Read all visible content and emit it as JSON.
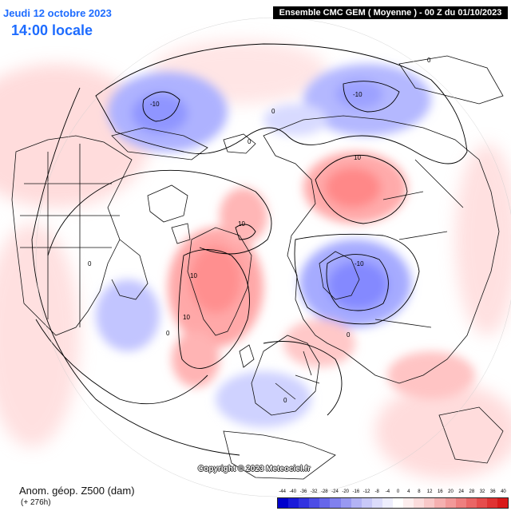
{
  "header": {
    "date": "Jeudi 12 octobre 2023",
    "local_time": "14:00 locale",
    "run_info": "Ensemble CMC GEM  ( Moyenne )  -  00 Z du 01/10/2023"
  },
  "footer": {
    "field_name": "Anom. géop. Z500 (dam)",
    "lead_time": "(+ 276h)",
    "copyright": "Copyright © 2023 Meteociel.fr"
  },
  "contour_labels": [
    "-10",
    "-10",
    "-10",
    "10",
    "10",
    "10",
    "10",
    "0",
    "0",
    "0",
    "0",
    "0",
    "0",
    "0"
  ],
  "legend": {
    "values": [
      "-44",
      "-40",
      "-36",
      "-32",
      "-28",
      "-24",
      "-20",
      "-16",
      "-12",
      "-8",
      "-4",
      "0",
      "4",
      "8",
      "12",
      "16",
      "20",
      "24",
      "28",
      "32",
      "36",
      "40"
    ],
    "colors": [
      "#0000cc",
      "#1a1ad9",
      "#3333e0",
      "#4d4de6",
      "#6666ea",
      "#8080ee",
      "#9999f2",
      "#b3b3f5",
      "#c8c8f8",
      "#dcdcfb",
      "#eeeefd",
      "#ffffff",
      "#fdeeee",
      "#fbdcdc",
      "#f8c8c8",
      "#f5b0b0",
      "#f29999",
      "#ee7f7f",
      "#ea6666",
      "#e64d4d",
      "#e03333",
      "#d91a1a"
    ]
  },
  "colors": {
    "title_blue": "#1e6cff",
    "positive_anomaly": "#ff9a9a",
    "negative_anomaly": "#9ea4ff"
  }
}
